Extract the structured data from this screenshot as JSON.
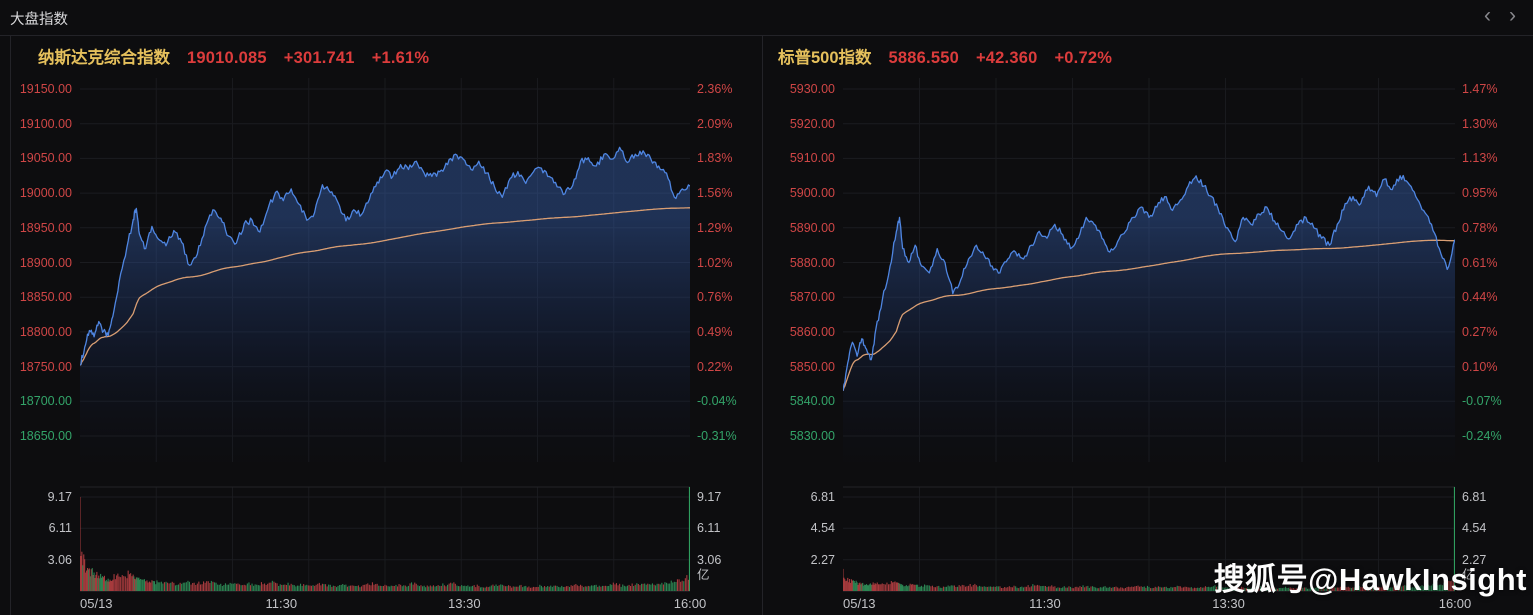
{
  "header": {
    "title": "大盘指数"
  },
  "pager": {
    "prev": "‹",
    "next": "›"
  },
  "watermark": "搜狐号@HawkInsight",
  "colors": {
    "up": "#cf4646",
    "down": "#33a469",
    "title_yellow": "#e5c05c",
    "header_value_red": "#dc3c3c",
    "price_line": "#4f86e2",
    "avg_line": "#d99e73",
    "vol_up": "#a63a3d",
    "vol_down": "#2c8653",
    "cursor_green": "#2f9e5f"
  },
  "charts": [
    {
      "name": "纳斯达克综合指数",
      "last": "19010.085",
      "change": "+301.741",
      "pct": "+1.61%"
    },
    {
      "name": "标普500指数",
      "last": "5886.550",
      "change": "+42.360",
      "pct": "+0.72%"
    }
  ],
  "chart_data": [
    {
      "type": "line",
      "title": "纳斯达克综合指数",
      "last": 19010.085,
      "change": 301.741,
      "change_pct": "+1.61%",
      "session": {
        "start": "09:30",
        "end": "16:00",
        "minutes": 390,
        "date": "05/13"
      },
      "ylim": [
        18650,
        19150
      ],
      "y_step": 50,
      "y_ticks_left": [
        "19150.00",
        "19100.00",
        "19050.00",
        "19000.00",
        "18950.00",
        "18900.00",
        "18850.00",
        "18800.00",
        "18750.00",
        "18700.00",
        "18650.00"
      ],
      "y_ticks_right": [
        "2.36%",
        "2.09%",
        "1.83%",
        "1.56%",
        "1.29%",
        "1.02%",
        "0.76%",
        "0.49%",
        "0.22%",
        "-0.04%",
        "-0.31%"
      ],
      "up_tick_count": 9,
      "x_labels": [
        {
          "text": "05/13",
          "pos": 0,
          "align": "left"
        },
        {
          "text": "11:30",
          "pos": 0.33,
          "align": "center"
        },
        {
          "text": "13:30",
          "pos": 0.63,
          "align": "center"
        },
        {
          "text": "16:00",
          "pos": 1,
          "align": "center"
        }
      ],
      "vol_ticks": [
        "9.17",
        "6.11",
        "3.06"
      ],
      "vol_top_value": 9.17,
      "vol_unit": "亿",
      "jitter": 4.5,
      "x": [
        0,
        3,
        6,
        9,
        12,
        15,
        18,
        21,
        25,
        30,
        34,
        36,
        38,
        42,
        46,
        50,
        55,
        60,
        65,
        70,
        75,
        80,
        85,
        90,
        95,
        100,
        105,
        110,
        115,
        120,
        125,
        130,
        135,
        140,
        145,
        150,
        155,
        160,
        165,
        170,
        175,
        180,
        185,
        190,
        195,
        200,
        205,
        210,
        215,
        220,
        225,
        230,
        235,
        240,
        245,
        250,
        255,
        260,
        265,
        270,
        275,
        280,
        285,
        290,
        295,
        300,
        305,
        310,
        315,
        320,
        325,
        330,
        335,
        340,
        345,
        350,
        355,
        360,
        365,
        370,
        375,
        380,
        385,
        390
      ],
      "price": [
        18752,
        18778,
        18802,
        18793,
        18815,
        18801,
        18795,
        18822,
        18872,
        18922,
        18962,
        18978,
        18941,
        18920,
        18952,
        18934,
        18924,
        18946,
        18929,
        18896,
        18912,
        18951,
        18976,
        18964,
        18938,
        18928,
        18956,
        18961,
        18944,
        18976,
        19001,
        18989,
        19006,
        18984,
        18961,
        18972,
        19012,
        19001,
        18986,
        18960,
        18976,
        18969,
        18991,
        19016,
        19031,
        19024,
        19041,
        19034,
        19046,
        19029,
        19024,
        19031,
        19041,
        19056,
        19049,
        19034,
        19046,
        19029,
        19009,
        18994,
        19021,
        19031,
        19014,
        19031,
        19036,
        19024,
        19009,
        18999,
        19011,
        19046,
        19051,
        19039,
        19056,
        19049,
        19066,
        19044,
        19056,
        19061,
        19049,
        19039,
        19029,
        18994,
        19006,
        19010.1
      ],
      "volume": [
        9.17,
        3.1,
        2.2,
        1.8,
        1.5,
        1.35,
        1.2,
        1.1,
        1.4,
        1.25,
        1.6,
        1.3,
        1.1,
        0.95,
        1.05,
        0.85,
        0.9,
        0.8,
        0.7,
        0.9,
        0.72,
        0.8,
        0.9,
        0.7,
        0.62,
        0.7,
        0.6,
        0.72,
        0.55,
        0.7,
        0.8,
        0.6,
        0.7,
        0.52,
        0.6,
        0.5,
        0.7,
        0.6,
        0.5,
        0.62,
        0.52,
        0.45,
        0.6,
        0.7,
        0.6,
        0.5,
        0.6,
        0.5,
        0.7,
        0.52,
        0.45,
        0.5,
        0.6,
        0.7,
        0.5,
        0.45,
        0.5,
        0.42,
        0.5,
        0.6,
        0.5,
        0.42,
        0.5,
        0.4,
        0.5,
        0.42,
        0.5,
        0.4,
        0.5,
        0.6,
        0.5,
        0.6,
        0.5,
        0.6,
        0.7,
        0.52,
        0.6,
        0.7,
        0.62,
        0.7,
        0.8,
        0.9,
        1.0,
        1.25
      ],
      "avg_line": "cumulative_mean_of_price"
    },
    {
      "type": "line",
      "title": "标普500指数",
      "last": 5886.55,
      "change": 42.36,
      "change_pct": "+0.72%",
      "session": {
        "start": "09:30",
        "end": "16:00",
        "minutes": 390,
        "date": "05/13"
      },
      "ylim": [
        5830,
        5930
      ],
      "y_step": 10,
      "y_ticks_left": [
        "5930.00",
        "5920.00",
        "5910.00",
        "5900.00",
        "5890.00",
        "5880.00",
        "5870.00",
        "5860.00",
        "5850.00",
        "5840.00",
        "5830.00"
      ],
      "y_ticks_right": [
        "1.47%",
        "1.30%",
        "1.13%",
        "0.95%",
        "0.78%",
        "0.61%",
        "0.44%",
        "0.27%",
        "0.10%",
        "-0.07%",
        "-0.24%"
      ],
      "up_tick_count": 9,
      "x_labels": [
        {
          "text": "05/13",
          "pos": 0,
          "align": "left"
        },
        {
          "text": "11:30",
          "pos": 0.33,
          "align": "center"
        },
        {
          "text": "13:30",
          "pos": 0.63,
          "align": "center"
        },
        {
          "text": "16:00",
          "pos": 1,
          "align": "center"
        }
      ],
      "vol_ticks": [
        "6.81",
        "4.54",
        "2.27"
      ],
      "vol_top_value": 6.81,
      "vol_unit": "亿",
      "jitter": 0.9,
      "x": [
        0,
        3,
        6,
        9,
        12,
        15,
        18,
        21,
        25,
        30,
        34,
        36,
        38,
        42,
        46,
        50,
        55,
        60,
        65,
        70,
        75,
        80,
        85,
        90,
        95,
        100,
        105,
        110,
        115,
        120,
        125,
        130,
        135,
        140,
        145,
        150,
        155,
        160,
        165,
        170,
        175,
        180,
        185,
        190,
        195,
        200,
        205,
        210,
        215,
        220,
        225,
        230,
        235,
        240,
        245,
        250,
        255,
        260,
        265,
        270,
        275,
        280,
        285,
        290,
        295,
        300,
        305,
        310,
        315,
        320,
        325,
        330,
        335,
        340,
        345,
        350,
        355,
        360,
        365,
        370,
        375,
        380,
        385,
        390
      ],
      "price": [
        5843,
        5851,
        5857,
        5853,
        5858,
        5855,
        5852,
        5861,
        5869,
        5879,
        5889,
        5893,
        5884,
        5880,
        5885,
        5879,
        5877,
        5884,
        5880,
        5871,
        5875,
        5881,
        5885,
        5882,
        5879,
        5877,
        5881,
        5883,
        5881,
        5885,
        5889,
        5887,
        5891,
        5888,
        5884,
        5887,
        5893,
        5891,
        5887,
        5883,
        5886,
        5889,
        5893,
        5896,
        5893,
        5896,
        5899,
        5895,
        5898,
        5902,
        5905,
        5902,
        5899,
        5894,
        5890,
        5886,
        5893,
        5891,
        5894,
        5896,
        5892,
        5889,
        5887,
        5891,
        5893,
        5890,
        5887,
        5885,
        5891,
        5897,
        5899,
        5897,
        5902,
        5899,
        5904,
        5901,
        5905,
        5903,
        5899,
        5895,
        5891,
        5884,
        5878,
        5886.6
      ],
      "volume": [
        1.6,
        0.95,
        0.75,
        0.62,
        0.55,
        0.5,
        0.45,
        0.5,
        0.55,
        0.5,
        0.6,
        0.52,
        0.45,
        0.4,
        0.45,
        0.38,
        0.4,
        0.35,
        0.3,
        0.4,
        0.34,
        0.38,
        0.42,
        0.34,
        0.3,
        0.34,
        0.28,
        0.34,
        0.26,
        0.34,
        0.4,
        0.3,
        0.34,
        0.26,
        0.3,
        0.25,
        0.34,
        0.3,
        0.25,
        0.3,
        0.26,
        0.22,
        0.3,
        0.34,
        0.3,
        0.25,
        0.3,
        0.25,
        0.34,
        0.26,
        0.22,
        0.25,
        0.3,
        0.34,
        0.25,
        0.22,
        0.25,
        0.21,
        0.25,
        0.3,
        0.25,
        0.21,
        0.25,
        0.2,
        0.25,
        0.21,
        0.25,
        0.2,
        0.25,
        0.3,
        0.25,
        0.3,
        0.25,
        0.3,
        0.34,
        0.26,
        0.3,
        0.34,
        0.3,
        0.34,
        0.4,
        0.45,
        0.5,
        0.62
      ],
      "avg_line": "cumulative_mean_of_price"
    }
  ]
}
